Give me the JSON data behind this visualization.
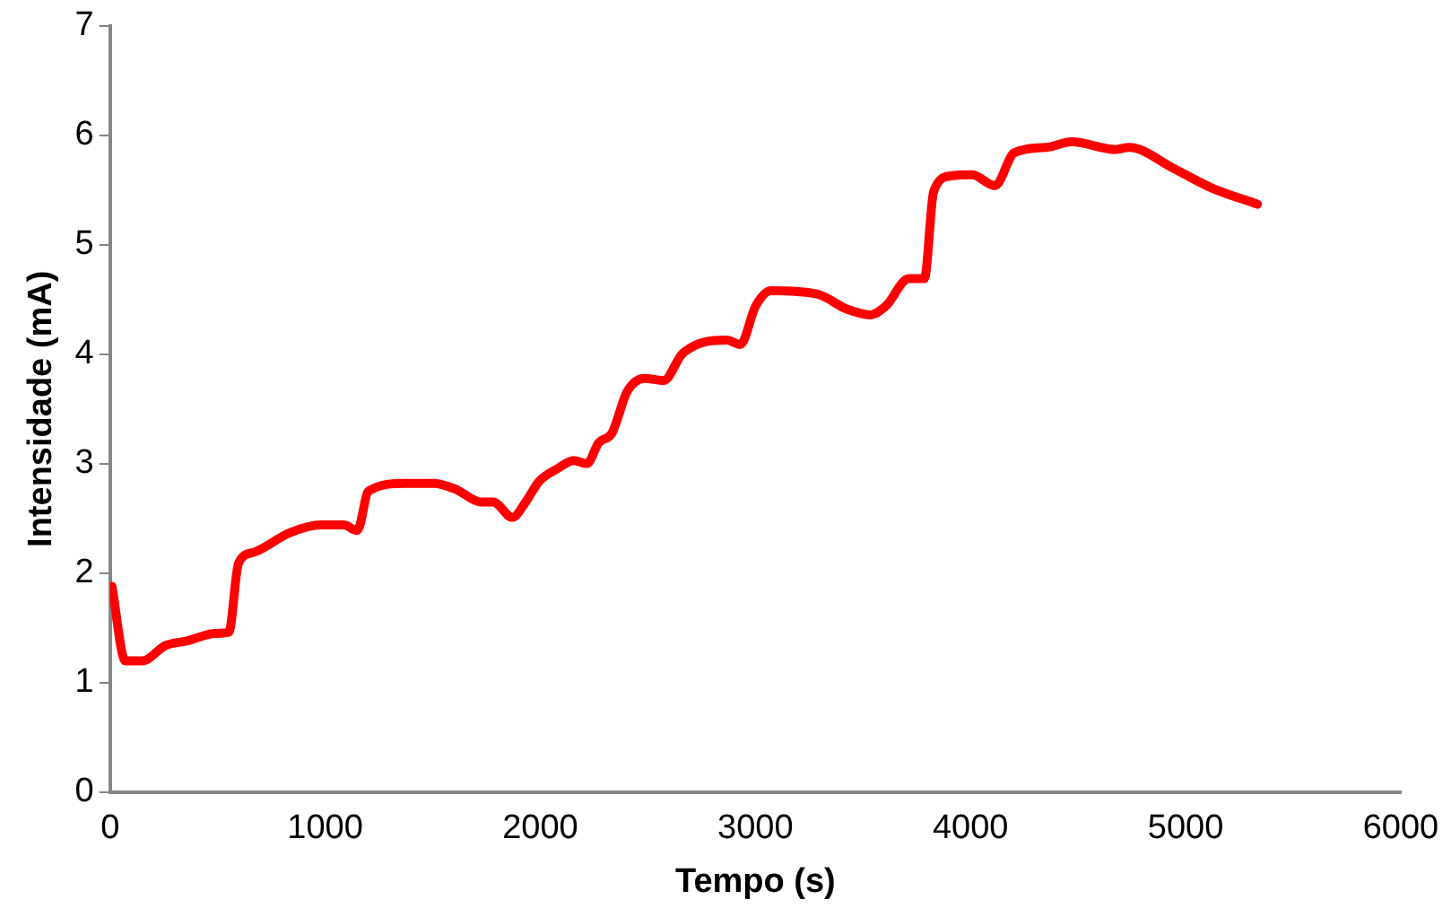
{
  "chart_data": {
    "type": "line",
    "xlabel": "Tempo (s)",
    "ylabel": "Intensidade (mA)",
    "xlim": [
      0,
      6000
    ],
    "xticks": [
      0,
      1000,
      2000,
      3000,
      4000,
      5000,
      6000
    ],
    "ylim": [
      0,
      7
    ],
    "yticks": [
      0,
      1,
      2,
      3,
      4,
      5,
      6,
      7
    ],
    "grid": false,
    "legend": false,
    "marker": "none",
    "line_style": "solid",
    "series": [
      {
        "color": "#ff0000",
        "x": [
          9,
          71,
          151,
          258,
          356,
          490,
          552,
          597,
          668,
          837,
          980,
          1086,
          1149,
          1202,
          1371,
          1505,
          1603,
          1728,
          1781,
          1870,
          1932,
          1995,
          2084,
          2155,
          2217,
          2271,
          2333,
          2404,
          2484,
          2573,
          2663,
          2867,
          2930,
          3001,
          3072,
          3286,
          3428,
          3535,
          3606,
          3713,
          3785,
          3829,
          3909,
          4007,
          4114,
          4203,
          4354,
          4470,
          4675,
          4737,
          4942,
          5120,
          5334
        ],
        "values": [
          1.88,
          1.2,
          1.2,
          1.34,
          1.38,
          1.45,
          1.46,
          2.09,
          2.19,
          2.37,
          2.44,
          2.44,
          2.39,
          2.75,
          2.82,
          2.82,
          2.77,
          2.65,
          2.65,
          2.51,
          2.65,
          2.84,
          2.96,
          3.03,
          3.0,
          3.19,
          3.28,
          3.66,
          3.78,
          3.76,
          4.01,
          4.13,
          4.09,
          4.44,
          4.58,
          4.55,
          4.41,
          4.36,
          4.44,
          4.69,
          4.69,
          5.49,
          5.63,
          5.64,
          5.54,
          5.84,
          5.89,
          5.94,
          5.87,
          5.89,
          5.7,
          5.52,
          5.37
        ]
      }
    ]
  }
}
